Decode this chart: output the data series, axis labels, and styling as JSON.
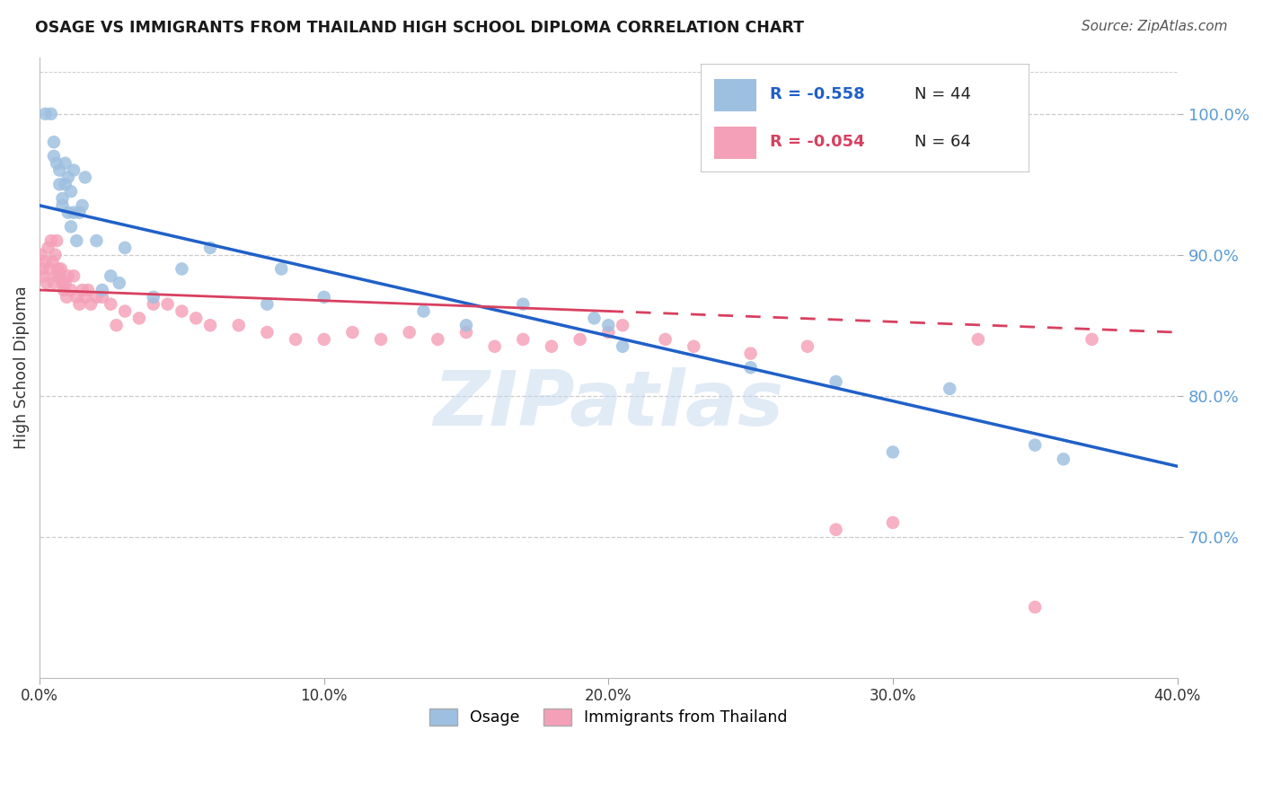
{
  "title": "OSAGE VS IMMIGRANTS FROM THAILAND HIGH SCHOOL DIPLOMA CORRELATION CHART",
  "source": "Source: ZipAtlas.com",
  "ylabel": "High School Diploma",
  "xlim": [
    0.0,
    40.0
  ],
  "ylim": [
    60.0,
    104.0
  ],
  "yticks": [
    70.0,
    80.0,
    90.0,
    100.0
  ],
  "xticks": [
    0.0,
    10.0,
    20.0,
    30.0,
    40.0
  ],
  "osage_R": -0.558,
  "osage_N": 44,
  "thailand_R": -0.054,
  "thailand_N": 64,
  "osage_color": "#9dbfe0",
  "thailand_color": "#f4a0b8",
  "osage_line_color": "#2060c8",
  "thailand_line_color": "#d84060",
  "watermark": "ZIPatlas",
  "legend_osage_label": "Osage",
  "legend_thailand_label": "Immigrants from Thailand",
  "osage_line_x0": 0.0,
  "osage_line_y0": 93.5,
  "osage_line_x1": 40.0,
  "osage_line_y1": 75.0,
  "thailand_line_x0": 0.0,
  "thailand_line_y0": 87.5,
  "thailand_line_x1": 40.0,
  "thailand_line_y1": 84.5,
  "thailand_solid_end": 20.0,
  "osage_scatter_x": [
    0.2,
    0.4,
    0.5,
    0.5,
    0.6,
    0.7,
    0.7,
    0.8,
    0.8,
    0.9,
    0.9,
    1.0,
    1.0,
    1.1,
    1.1,
    1.2,
    1.2,
    1.3,
    1.4,
    1.5,
    1.6,
    2.0,
    2.2,
    2.5,
    3.0,
    4.0,
    5.0,
    6.0,
    8.0,
    10.0,
    13.5,
    17.0,
    19.5,
    20.0,
    25.0,
    28.0,
    30.0,
    32.0,
    35.0,
    36.0,
    20.5,
    8.5,
    2.8,
    15.0
  ],
  "osage_scatter_y": [
    100.0,
    100.0,
    98.0,
    97.0,
    96.5,
    96.0,
    95.0,
    94.0,
    93.5,
    95.0,
    96.5,
    93.0,
    95.5,
    92.0,
    94.5,
    93.0,
    96.0,
    91.0,
    93.0,
    93.5,
    95.5,
    91.0,
    87.5,
    88.5,
    90.5,
    87.0,
    89.0,
    90.5,
    86.5,
    87.0,
    86.0,
    86.5,
    85.5,
    85.0,
    82.0,
    81.0,
    76.0,
    80.5,
    76.5,
    75.5,
    83.5,
    89.0,
    88.0,
    85.0
  ],
  "thailand_scatter_x": [
    0.05,
    0.1,
    0.15,
    0.2,
    0.25,
    0.3,
    0.35,
    0.4,
    0.45,
    0.5,
    0.55,
    0.6,
    0.6,
    0.65,
    0.7,
    0.75,
    0.8,
    0.85,
    0.9,
    0.95,
    1.0,
    1.1,
    1.2,
    1.3,
    1.4,
    1.5,
    1.6,
    1.7,
    1.8,
    2.0,
    2.2,
    2.5,
    2.7,
    3.0,
    3.5,
    4.0,
    4.5,
    5.0,
    5.5,
    6.0,
    7.0,
    8.0,
    9.0,
    10.0,
    11.0,
    12.0,
    13.0,
    14.0,
    15.0,
    16.0,
    17.0,
    18.0,
    19.0,
    20.0,
    22.0,
    23.0,
    25.0,
    27.0,
    28.0,
    30.0,
    33.0,
    35.0,
    37.0,
    20.5
  ],
  "thailand_scatter_y": [
    90.0,
    89.0,
    88.5,
    89.5,
    88.0,
    90.5,
    89.0,
    91.0,
    89.5,
    88.0,
    90.0,
    91.0,
    88.5,
    89.0,
    88.5,
    89.0,
    88.0,
    87.5,
    88.0,
    87.0,
    88.5,
    87.5,
    88.5,
    87.0,
    86.5,
    87.5,
    87.0,
    87.5,
    86.5,
    87.0,
    87.0,
    86.5,
    85.0,
    86.0,
    85.5,
    86.5,
    86.5,
    86.0,
    85.5,
    85.0,
    85.0,
    84.5,
    84.0,
    84.0,
    84.5,
    84.0,
    84.5,
    84.0,
    84.5,
    83.5,
    84.0,
    83.5,
    84.0,
    84.5,
    84.0,
    83.5,
    83.0,
    83.5,
    70.5,
    71.0,
    84.0,
    65.0,
    84.0,
    85.0
  ]
}
